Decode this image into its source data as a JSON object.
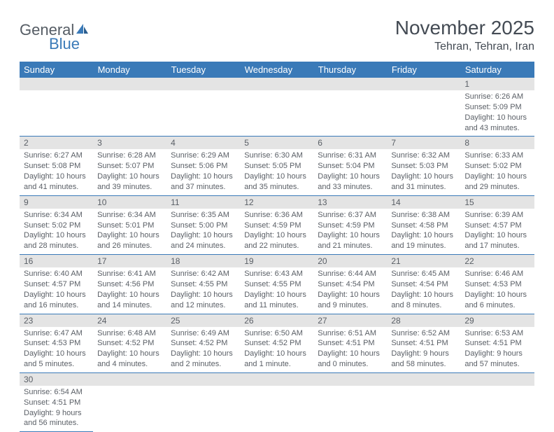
{
  "logo": {
    "text1": "General",
    "text2": "Blue"
  },
  "title": "November 2025",
  "location": "Tehran, Tehran, Iran",
  "colors": {
    "header_bg": "#3a7ab8",
    "header_fg": "#ffffff",
    "daynum_bg": "#e4e4e4",
    "text": "#5a5f66",
    "rule": "#3a7ab8"
  },
  "dow": [
    "Sunday",
    "Monday",
    "Tuesday",
    "Wednesday",
    "Thursday",
    "Friday",
    "Saturday"
  ],
  "weeks": [
    [
      null,
      null,
      null,
      null,
      null,
      null,
      {
        "n": "1",
        "sr": "Sunrise: 6:26 AM",
        "ss": "Sunset: 5:09 PM",
        "dl": "Daylight: 10 hours and 43 minutes."
      }
    ],
    [
      {
        "n": "2",
        "sr": "Sunrise: 6:27 AM",
        "ss": "Sunset: 5:08 PM",
        "dl": "Daylight: 10 hours and 41 minutes."
      },
      {
        "n": "3",
        "sr": "Sunrise: 6:28 AM",
        "ss": "Sunset: 5:07 PM",
        "dl": "Daylight: 10 hours and 39 minutes."
      },
      {
        "n": "4",
        "sr": "Sunrise: 6:29 AM",
        "ss": "Sunset: 5:06 PM",
        "dl": "Daylight: 10 hours and 37 minutes."
      },
      {
        "n": "5",
        "sr": "Sunrise: 6:30 AM",
        "ss": "Sunset: 5:05 PM",
        "dl": "Daylight: 10 hours and 35 minutes."
      },
      {
        "n": "6",
        "sr": "Sunrise: 6:31 AM",
        "ss": "Sunset: 5:04 PM",
        "dl": "Daylight: 10 hours and 33 minutes."
      },
      {
        "n": "7",
        "sr": "Sunrise: 6:32 AM",
        "ss": "Sunset: 5:03 PM",
        "dl": "Daylight: 10 hours and 31 minutes."
      },
      {
        "n": "8",
        "sr": "Sunrise: 6:33 AM",
        "ss": "Sunset: 5:02 PM",
        "dl": "Daylight: 10 hours and 29 minutes."
      }
    ],
    [
      {
        "n": "9",
        "sr": "Sunrise: 6:34 AM",
        "ss": "Sunset: 5:02 PM",
        "dl": "Daylight: 10 hours and 28 minutes."
      },
      {
        "n": "10",
        "sr": "Sunrise: 6:34 AM",
        "ss": "Sunset: 5:01 PM",
        "dl": "Daylight: 10 hours and 26 minutes."
      },
      {
        "n": "11",
        "sr": "Sunrise: 6:35 AM",
        "ss": "Sunset: 5:00 PM",
        "dl": "Daylight: 10 hours and 24 minutes."
      },
      {
        "n": "12",
        "sr": "Sunrise: 6:36 AM",
        "ss": "Sunset: 4:59 PM",
        "dl": "Daylight: 10 hours and 22 minutes."
      },
      {
        "n": "13",
        "sr": "Sunrise: 6:37 AM",
        "ss": "Sunset: 4:59 PM",
        "dl": "Daylight: 10 hours and 21 minutes."
      },
      {
        "n": "14",
        "sr": "Sunrise: 6:38 AM",
        "ss": "Sunset: 4:58 PM",
        "dl": "Daylight: 10 hours and 19 minutes."
      },
      {
        "n": "15",
        "sr": "Sunrise: 6:39 AM",
        "ss": "Sunset: 4:57 PM",
        "dl": "Daylight: 10 hours and 17 minutes."
      }
    ],
    [
      {
        "n": "16",
        "sr": "Sunrise: 6:40 AM",
        "ss": "Sunset: 4:57 PM",
        "dl": "Daylight: 10 hours and 16 minutes."
      },
      {
        "n": "17",
        "sr": "Sunrise: 6:41 AM",
        "ss": "Sunset: 4:56 PM",
        "dl": "Daylight: 10 hours and 14 minutes."
      },
      {
        "n": "18",
        "sr": "Sunrise: 6:42 AM",
        "ss": "Sunset: 4:55 PM",
        "dl": "Daylight: 10 hours and 12 minutes."
      },
      {
        "n": "19",
        "sr": "Sunrise: 6:43 AM",
        "ss": "Sunset: 4:55 PM",
        "dl": "Daylight: 10 hours and 11 minutes."
      },
      {
        "n": "20",
        "sr": "Sunrise: 6:44 AM",
        "ss": "Sunset: 4:54 PM",
        "dl": "Daylight: 10 hours and 9 minutes."
      },
      {
        "n": "21",
        "sr": "Sunrise: 6:45 AM",
        "ss": "Sunset: 4:54 PM",
        "dl": "Daylight: 10 hours and 8 minutes."
      },
      {
        "n": "22",
        "sr": "Sunrise: 6:46 AM",
        "ss": "Sunset: 4:53 PM",
        "dl": "Daylight: 10 hours and 6 minutes."
      }
    ],
    [
      {
        "n": "23",
        "sr": "Sunrise: 6:47 AM",
        "ss": "Sunset: 4:53 PM",
        "dl": "Daylight: 10 hours and 5 minutes."
      },
      {
        "n": "24",
        "sr": "Sunrise: 6:48 AM",
        "ss": "Sunset: 4:52 PM",
        "dl": "Daylight: 10 hours and 4 minutes."
      },
      {
        "n": "25",
        "sr": "Sunrise: 6:49 AM",
        "ss": "Sunset: 4:52 PM",
        "dl": "Daylight: 10 hours and 2 minutes."
      },
      {
        "n": "26",
        "sr": "Sunrise: 6:50 AM",
        "ss": "Sunset: 4:52 PM",
        "dl": "Daylight: 10 hours and 1 minute."
      },
      {
        "n": "27",
        "sr": "Sunrise: 6:51 AM",
        "ss": "Sunset: 4:51 PM",
        "dl": "Daylight: 10 hours and 0 minutes."
      },
      {
        "n": "28",
        "sr": "Sunrise: 6:52 AM",
        "ss": "Sunset: 4:51 PM",
        "dl": "Daylight: 9 hours and 58 minutes."
      },
      {
        "n": "29",
        "sr": "Sunrise: 6:53 AM",
        "ss": "Sunset: 4:51 PM",
        "dl": "Daylight: 9 hours and 57 minutes."
      }
    ],
    [
      {
        "n": "30",
        "sr": "Sunrise: 6:54 AM",
        "ss": "Sunset: 4:51 PM",
        "dl": "Daylight: 9 hours and 56 minutes."
      },
      null,
      null,
      null,
      null,
      null,
      null
    ]
  ]
}
